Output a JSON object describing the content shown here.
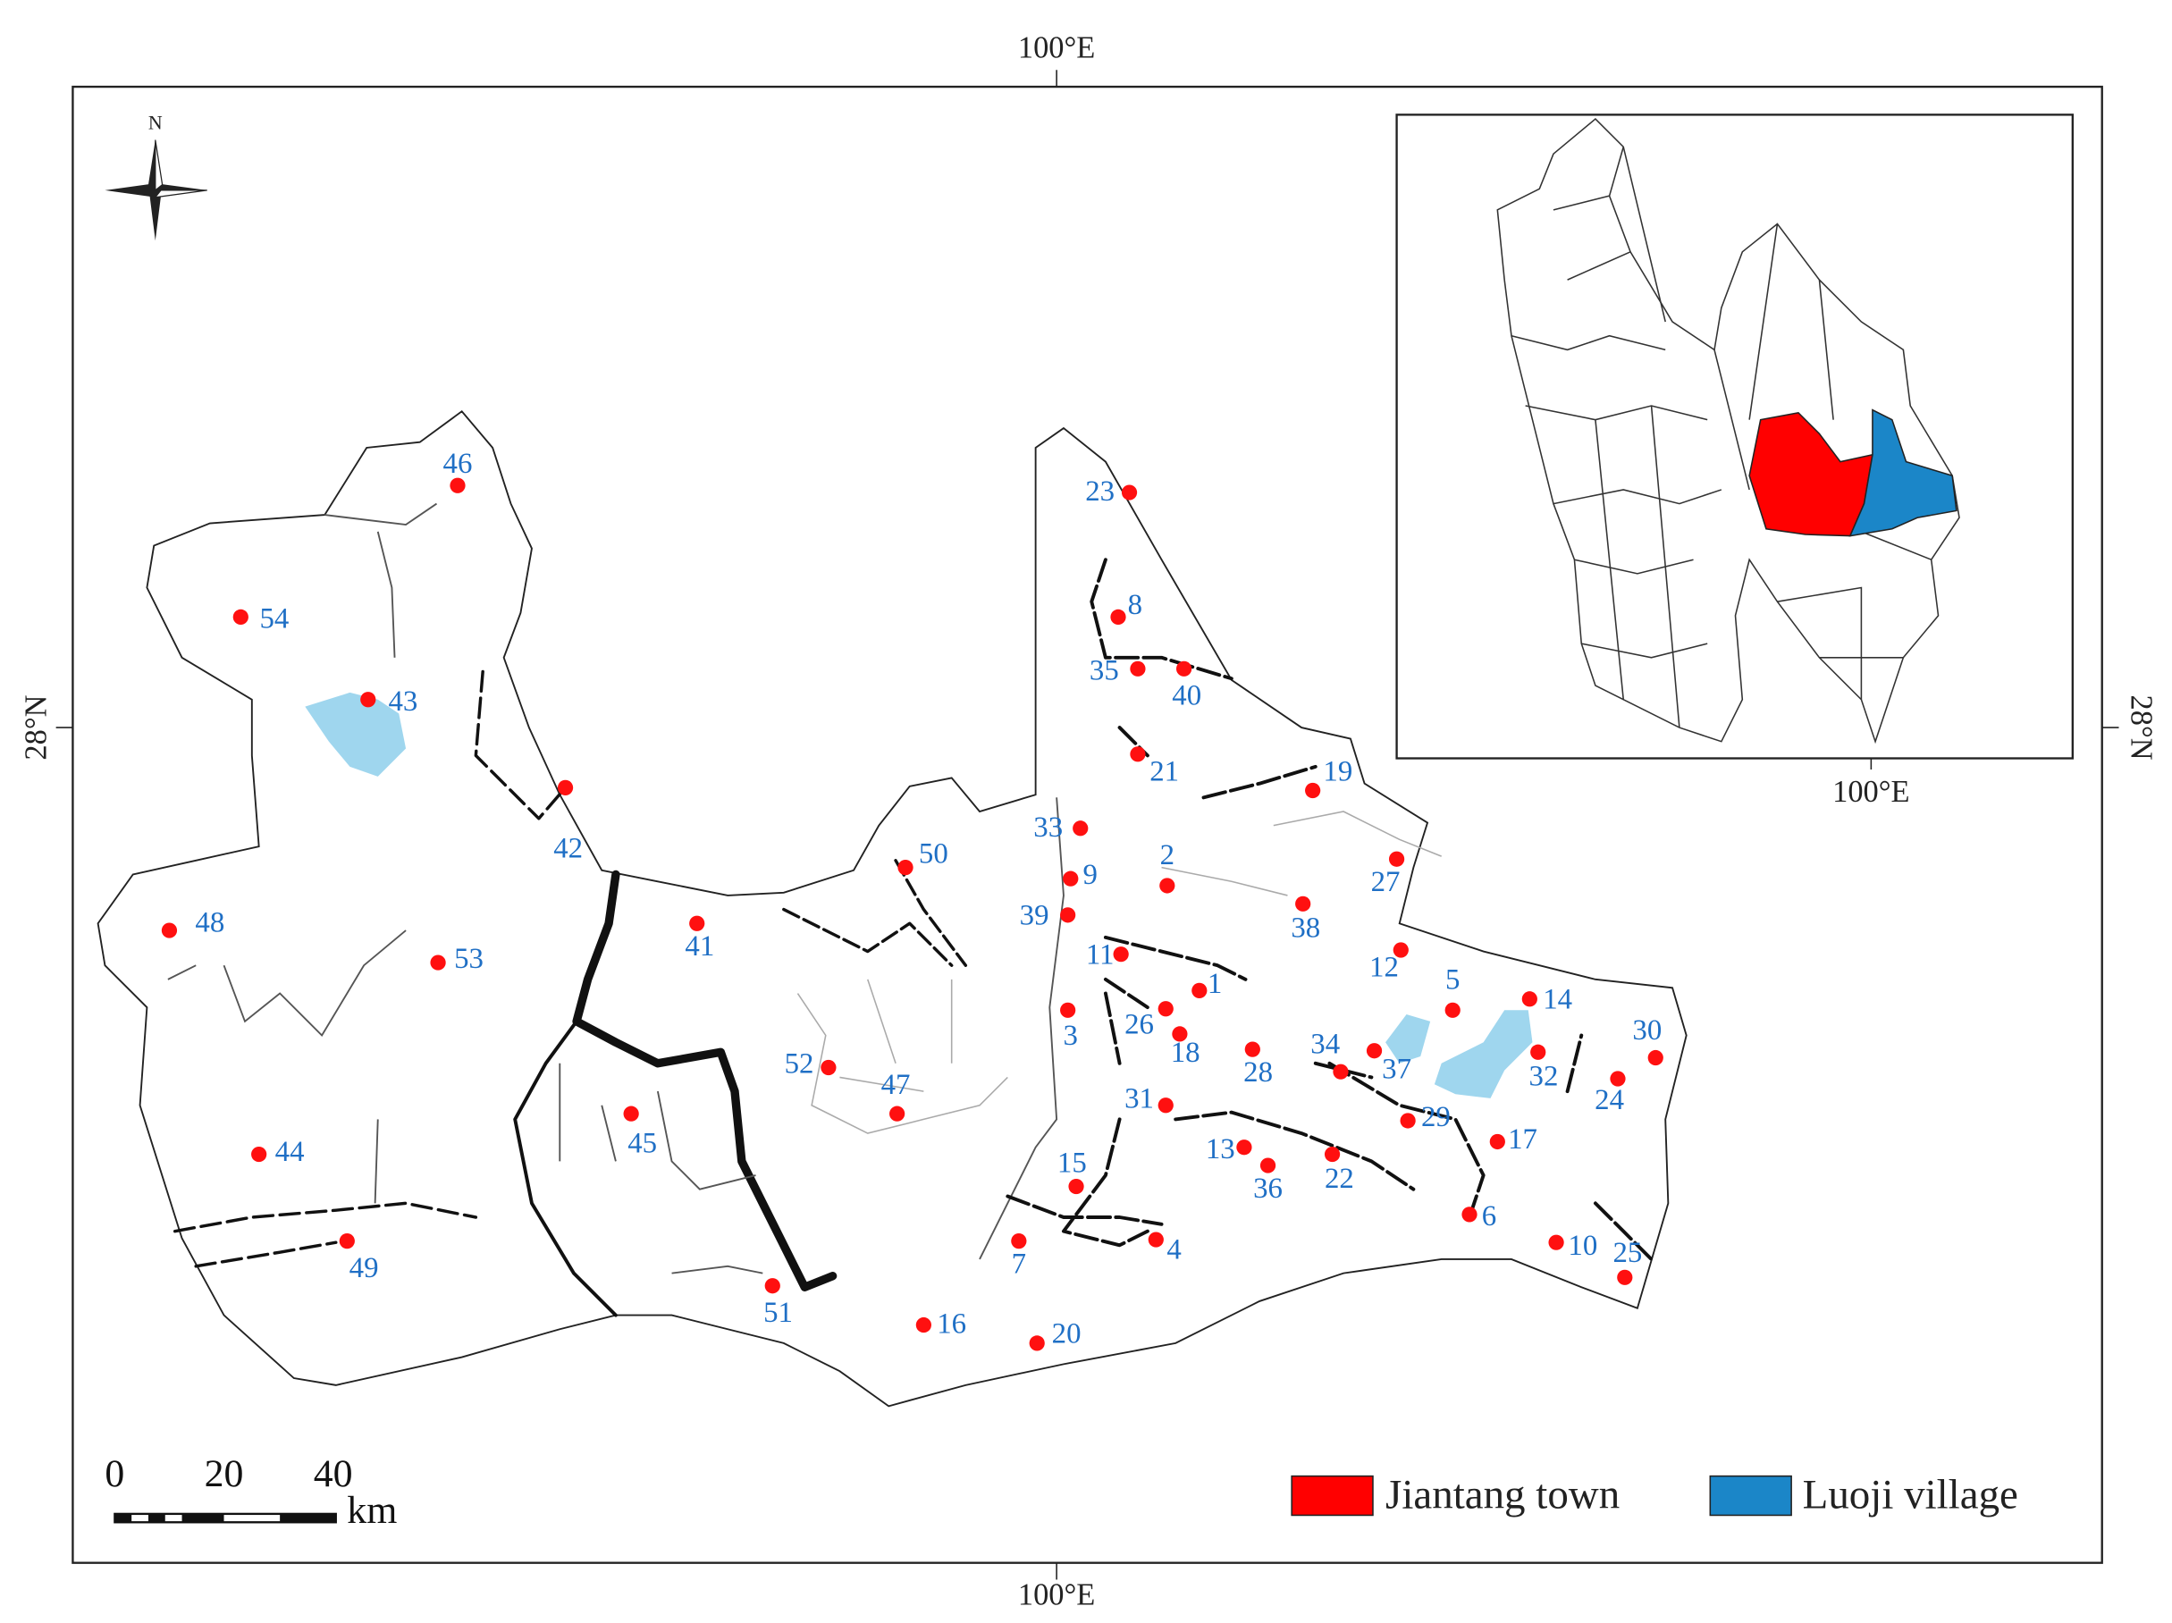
{
  "coords": {
    "top": "100°E",
    "bottom": "100°E",
    "left": "28°N",
    "right": "28°N",
    "inset": "100°E"
  },
  "north": "N",
  "scale": {
    "ticks": [
      "0",
      "20",
      "40"
    ],
    "unit": "km"
  },
  "legend": [
    "Jiantang town",
    "Luoji village"
  ],
  "points": [
    "1",
    "2",
    "3",
    "4",
    "5",
    "6",
    "7",
    "8",
    "9",
    "10",
    "11",
    "12",
    "13",
    "14",
    "15",
    "16",
    "17",
    "18",
    "19",
    "20",
    "21",
    "22",
    "23",
    "24",
    "25",
    "26",
    "27",
    "28",
    "29",
    "30",
    "31",
    "32",
    "33",
    "34",
    "35",
    "36",
    "37",
    "38",
    "39",
    "40",
    "41",
    "42",
    "43",
    "44",
    "45",
    "46",
    "47",
    "48",
    "49",
    "50",
    "51",
    "52",
    "53",
    "54"
  ]
}
